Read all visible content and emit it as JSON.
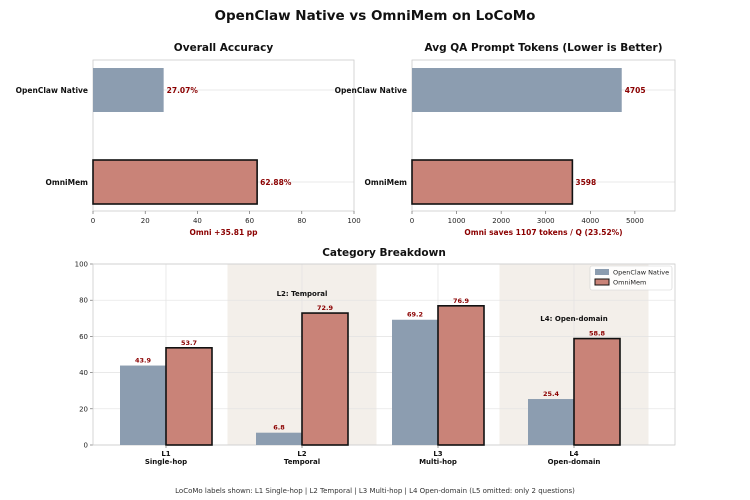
{
  "figure": {
    "title": "OpenClaw Native vs OmniMem on LoCoMo",
    "footnote": "LoCoMo labels shown: L1 Single-hop | L2 Temporal | L3 Multi-hop | L4 Open-domain (L5 omitted: only 2 questions)"
  },
  "colors": {
    "native": "#8c9db0",
    "omni": "#c98378",
    "value_label": "#8b0000",
    "shade": "#f3efea",
    "grid": "#e2e2e2",
    "spine": "#cccccc"
  },
  "chart_data": [
    {
      "id": "accuracy",
      "type": "bar",
      "orientation": "horizontal",
      "title": "Overall Accuracy",
      "categories": [
        "OpenClaw Native",
        "OmniMem"
      ],
      "values": [
        27.07,
        62.88
      ],
      "value_labels": [
        "27.07%",
        "62.88%"
      ],
      "xlim": [
        0,
        100
      ],
      "xticks": [
        0,
        20,
        40,
        60,
        80,
        100
      ],
      "xtick_labels": [
        "0",
        "20",
        "40",
        "60",
        "80",
        "100"
      ],
      "annotation": "Omni +35.81 pp",
      "grid": true
    },
    {
      "id": "tokens",
      "type": "bar",
      "orientation": "horizontal",
      "title": "Avg QA Prompt Tokens (Lower is Better)",
      "categories": [
        "OpenClaw Native",
        "OmniMem"
      ],
      "values": [
        4705,
        3598
      ],
      "value_labels": [
        "4705",
        "3598"
      ],
      "xlim": [
        0,
        5900
      ],
      "xticks": [
        0,
        1000,
        2000,
        3000,
        4000,
        5000
      ],
      "xtick_labels": [
        "0",
        "1000",
        "2000",
        "3000",
        "4000",
        "5000"
      ],
      "annotation": "Omni saves 1107 tokens / Q (23.52%)",
      "grid": true
    },
    {
      "id": "category",
      "type": "bar",
      "orientation": "vertical",
      "title": "Category Breakdown",
      "categories": [
        "L1",
        "L2",
        "L3",
        "L4"
      ],
      "category_names": [
        "Single-hop",
        "Temporal",
        "Multi-hop",
        "Open-domain"
      ],
      "category_annotations": [
        "",
        "L2: Temporal",
        "",
        "L4: Open-domain"
      ],
      "shaded_categories": [
        false,
        true,
        false,
        true
      ],
      "series": [
        {
          "name": "OpenClaw Native",
          "values": [
            43.9,
            6.8,
            69.2,
            25.4
          ],
          "value_labels": [
            "43.9",
            "6.8",
            "69.2",
            "25.4"
          ]
        },
        {
          "name": "OmniMem",
          "values": [
            53.7,
            72.9,
            76.9,
            58.8
          ],
          "value_labels": [
            "53.7",
            "72.9",
            "76.9",
            "58.8"
          ]
        }
      ],
      "ylim": [
        0,
        100
      ],
      "yticks": [
        0,
        20,
        40,
        60,
        80,
        100
      ],
      "ytick_labels": [
        "0",
        "20",
        "40",
        "60",
        "80",
        "100"
      ],
      "legend": "top-right",
      "grid": true
    }
  ]
}
